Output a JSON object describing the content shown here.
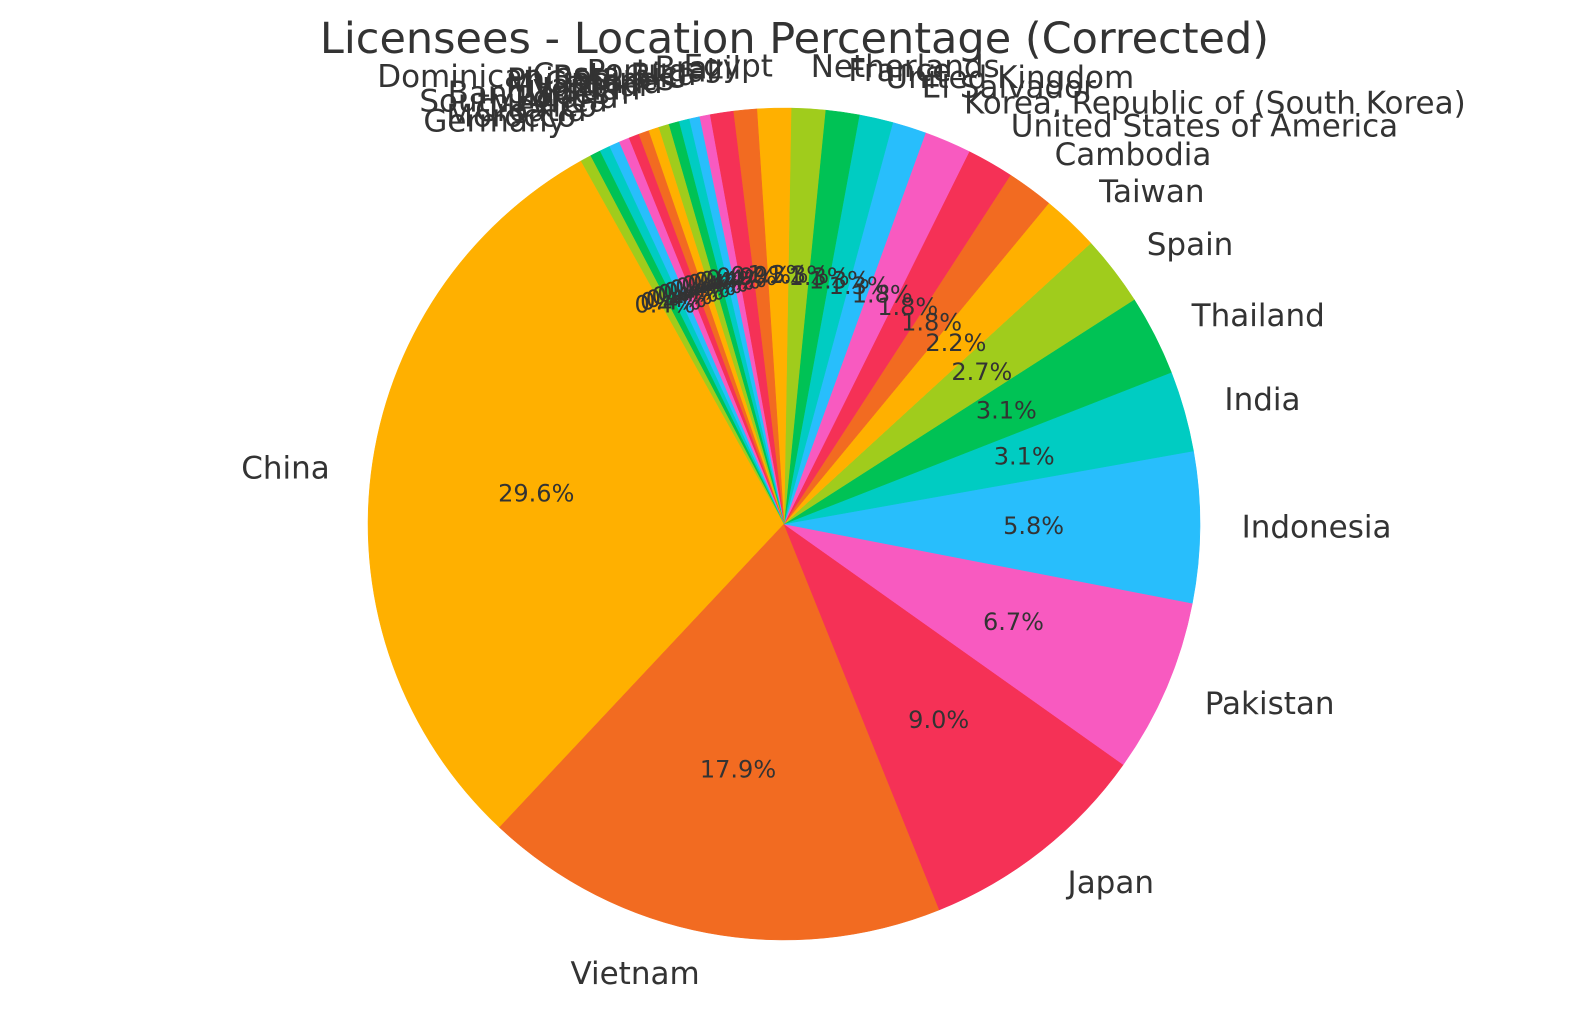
{
  "chart_data": {
    "type": "pie",
    "title": "Licensees - Location Percentage (Corrected)",
    "start_angle_deg": 119.2,
    "direction": "counterclockwise",
    "slices": [
      {
        "label": "China",
        "value": 29.6,
        "pct_label": "29.6%",
        "color": "#FFB000"
      },
      {
        "label": "Vietnam",
        "value": 17.9,
        "pct_label": "17.9%",
        "color": "#F26B21"
      },
      {
        "label": "Japan",
        "value": 9.0,
        "pct_label": "9.0%",
        "color": "#F53156"
      },
      {
        "label": "Pakistan",
        "value": 6.7,
        "pct_label": "6.7%",
        "color": "#F85AC0"
      },
      {
        "label": "Indonesia",
        "value": 5.8,
        "pct_label": "5.8%",
        "color": "#28BEFC"
      },
      {
        "label": "India",
        "value": 3.1,
        "pct_label": "3.1%",
        "color": "#00CCC2"
      },
      {
        "label": "Thailand",
        "value": 3.1,
        "pct_label": "3.1%",
        "color": "#00C255"
      },
      {
        "label": "Spain",
        "value": 2.7,
        "pct_label": "2.7%",
        "color": "#A0CC1C"
      },
      {
        "label": "Taiwan",
        "value": 2.2,
        "pct_label": "2.2%",
        "color": "#FFB000"
      },
      {
        "label": "Cambodia",
        "value": 1.8,
        "pct_label": "1.8%",
        "color": "#F26B21"
      },
      {
        "label": "United States of America",
        "value": 1.8,
        "pct_label": "1.8%",
        "color": "#F53156"
      },
      {
        "label": "Korea, Republic of (South Korea)",
        "value": 1.8,
        "pct_label": "1.8%",
        "color": "#F85AC0"
      },
      {
        "label": "El Salvador",
        "value": 1.3,
        "pct_label": "1.3%",
        "color": "#28BEFC"
      },
      {
        "label": "United Kingdom",
        "value": 1.3,
        "pct_label": "1.3%",
        "color": "#00CCC2"
      },
      {
        "label": "France",
        "value": 1.3,
        "pct_label": "1.3%",
        "color": "#00C255"
      },
      {
        "label": "Netherlands",
        "value": 1.3,
        "pct_label": "1.3%",
        "color": "#A0CC1C"
      },
      {
        "label": "Egypt",
        "value": 1.3,
        "pct_label": "1.3%",
        "color": "#FFB000"
      },
      {
        "label": "Brazil",
        "value": 0.9,
        "pct_label": "0.9%",
        "color": "#F26B21"
      },
      {
        "label": "Portugal",
        "value": 0.9,
        "pct_label": "0.9%",
        "color": "#F53156"
      },
      {
        "label": "Costa Rica",
        "value": 0.4,
        "pct_label": "0.4%",
        "color": "#F85AC0"
      },
      {
        "label": "Dominican Republic",
        "value": 0.4,
        "pct_label": "0.4%",
        "color": "#28BEFC"
      },
      {
        "label": "Philippines",
        "value": 0.4,
        "pct_label": "0.4%",
        "color": "#00CCC2"
      },
      {
        "label": "Canada",
        "value": 0.4,
        "pct_label": "0.4%",
        "color": "#00C255"
      },
      {
        "label": "Myanmar",
        "value": 0.4,
        "pct_label": "0.4%",
        "color": "#A0CC1C"
      },
      {
        "label": "Jordan",
        "value": 0.4,
        "pct_label": "0.4%",
        "color": "#FFB000"
      },
      {
        "label": "Bangladesh",
        "value": 0.4,
        "pct_label": "0.4%",
        "color": "#F26B21"
      },
      {
        "label": "Poland",
        "value": 0.4,
        "pct_label": "0.4%",
        "color": "#F53156"
      },
      {
        "label": "South Africa",
        "value": 0.4,
        "pct_label": "0.4%",
        "color": "#F85AC0"
      },
      {
        "label": "Mexico",
        "value": 0.4,
        "pct_label": "0.4%",
        "color": "#28BEFC"
      },
      {
        "label": "Croatia",
        "value": 0.4,
        "pct_label": "0.4%",
        "color": "#00CCC2"
      },
      {
        "label": "Morocco",
        "value": 0.4,
        "pct_label": "0.4%",
        "color": "#00C255"
      },
      {
        "label": "Germany",
        "value": 0.4,
        "pct_label": "0.4%",
        "color": "#A0CC1C"
      }
    ]
  }
}
